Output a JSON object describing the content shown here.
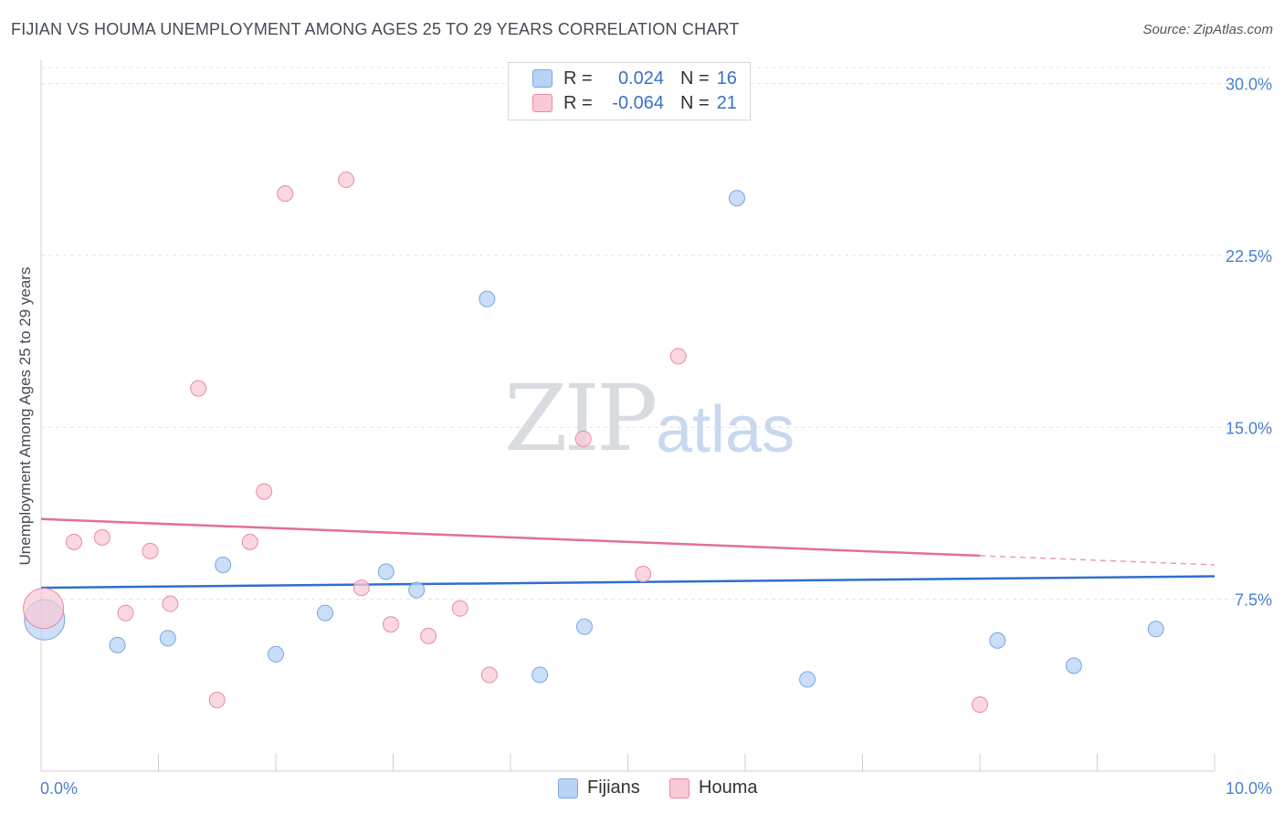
{
  "header": {
    "title": "FIJIAN VS HOUMA UNEMPLOYMENT AMONG AGES 25 TO 29 YEARS CORRELATION CHART",
    "source": "Source: ZipAtlas.com"
  },
  "watermark": {
    "zip": "ZIP",
    "atlas": "atlas"
  },
  "legend": {
    "rows": [
      {
        "r_label": "R =",
        "r_value": "0.024",
        "n_label": "N =",
        "n_value": "16",
        "color": "#b8d3f5",
        "border": "#7aa6e0"
      },
      {
        "r_label": "R =",
        "r_value": "-0.064",
        "n_label": "N =",
        "n_value": "21",
        "color": "#f9c9d6",
        "border": "#e98aa8"
      }
    ]
  },
  "bottom_legend": {
    "items": [
      {
        "label": "Fijians",
        "color": "#b8d3f5",
        "border": "#7aa6e0"
      },
      {
        "label": "Houma",
        "color": "#f9c9d6",
        "border": "#e98aa8"
      }
    ]
  },
  "chart_data": {
    "type": "scatter",
    "title": "FIJIAN VS HOUMA UNEMPLOYMENT AMONG AGES 25 TO 29 YEARS CORRELATION CHART",
    "xlabel": "",
    "ylabel": "Unemployment Among Ages 25 to 29 years",
    "xlim": [
      0,
      10
    ],
    "ylim": [
      0,
      30.7
    ],
    "x_tick_labels": [
      "0.0%",
      "10.0%"
    ],
    "y_ticks": [
      7.5,
      15.0,
      22.5,
      30.0
    ],
    "y_tick_labels": [
      "7.5%",
      "15.0%",
      "22.5%",
      "30.0%"
    ],
    "grid": true,
    "legend": "top-center",
    "series": [
      {
        "name": "Fijians",
        "color": "#b8d3f5",
        "edge": "#7aa6e0",
        "line_color": "#2f6fcc",
        "trend": {
          "x": [
            0,
            10
          ],
          "y": [
            8.0,
            8.5
          ]
        },
        "points": [
          {
            "x": 0.03,
            "y": 6.6,
            "big": true
          },
          {
            "x": 0.65,
            "y": 5.5
          },
          {
            "x": 1.08,
            "y": 5.8
          },
          {
            "x": 1.55,
            "y": 9.0
          },
          {
            "x": 2.0,
            "y": 5.1
          },
          {
            "x": 2.42,
            "y": 6.9
          },
          {
            "x": 2.94,
            "y": 8.7
          },
          {
            "x": 3.2,
            "y": 7.9
          },
          {
            "x": 3.8,
            "y": 20.6
          },
          {
            "x": 4.25,
            "y": 4.2
          },
          {
            "x": 4.63,
            "y": 6.3
          },
          {
            "x": 5.93,
            "y": 25.0
          },
          {
            "x": 6.53,
            "y": 4.0
          },
          {
            "x": 8.15,
            "y": 5.7
          },
          {
            "x": 8.8,
            "y": 4.6
          },
          {
            "x": 9.5,
            "y": 6.2
          }
        ]
      },
      {
        "name": "Houma",
        "color": "#f9c9d6",
        "edge": "#e98aa8",
        "line_color": "#e36f95",
        "trend": {
          "x": [
            0,
            8.0
          ],
          "y": [
            11.0,
            9.4
          ]
        },
        "trend_dashed": {
          "x": [
            8.0,
            10
          ],
          "y": [
            9.4,
            9.0
          ]
        },
        "points": [
          {
            "x": 0.02,
            "y": 7.1,
            "big": true
          },
          {
            "x": 0.28,
            "y": 10.0
          },
          {
            "x": 0.52,
            "y": 10.2
          },
          {
            "x": 0.72,
            "y": 6.9
          },
          {
            "x": 0.93,
            "y": 9.6
          },
          {
            "x": 1.1,
            "y": 7.3
          },
          {
            "x": 1.34,
            "y": 16.7
          },
          {
            "x": 1.5,
            "y": 3.1
          },
          {
            "x": 1.78,
            "y": 10.0
          },
          {
            "x": 1.9,
            "y": 12.2
          },
          {
            "x": 2.08,
            "y": 25.2
          },
          {
            "x": 2.6,
            "y": 25.8
          },
          {
            "x": 2.73,
            "y": 8.0
          },
          {
            "x": 2.98,
            "y": 6.4
          },
          {
            "x": 3.3,
            "y": 5.9
          },
          {
            "x": 3.57,
            "y": 7.1
          },
          {
            "x": 3.82,
            "y": 4.2
          },
          {
            "x": 4.62,
            "y": 14.5
          },
          {
            "x": 5.13,
            "y": 8.6
          },
          {
            "x": 5.43,
            "y": 18.1
          },
          {
            "x": 8.0,
            "y": 2.9
          }
        ]
      }
    ]
  }
}
